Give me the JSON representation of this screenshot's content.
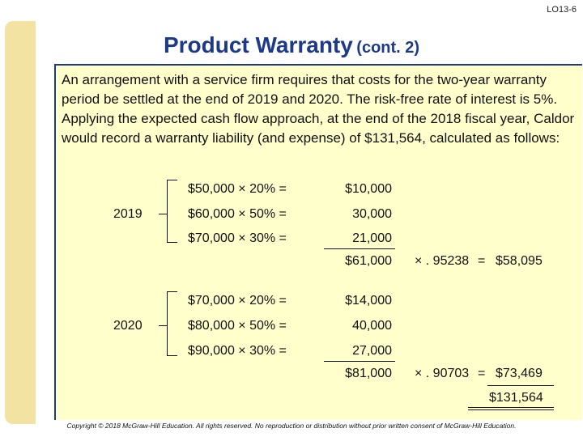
{
  "slide_id": "LO13-6",
  "title": {
    "main": "Product Warranty",
    "sub": "(cont. 2)"
  },
  "intro": "An arrangement with a service firm requires that costs for the two-year warranty period be settled at the end of 2019 and 2020. The risk-free rate of interest is 5%. Applying the expected cash flow approach, at the end of the 2018 fiscal year, Caldor would record a warranty liability (and expense) of $131,564, calculated as follows:",
  "years": [
    {
      "year": "2019",
      "rows": [
        {
          "calc": "$50,000 × 20% =",
          "amount": "$10,000"
        },
        {
          "calc": "$60,000 × 50% =",
          "amount": "30,000"
        },
        {
          "calc": "$70,000 × 30% =",
          "amount": "21,000"
        }
      ],
      "total": "$61,000",
      "factor": "× . 95238",
      "equals": "=",
      "pv": "$58,095"
    },
    {
      "year": "2020",
      "rows": [
        {
          "calc": "$70,000 × 20% =",
          "amount": "$14,000"
        },
        {
          "calc": "$80,000 × 50% =",
          "amount": "40,000"
        },
        {
          "calc": "$90,000 × 30% =",
          "amount": "27,000"
        }
      ],
      "total": "$81,000",
      "factor": "× . 90703",
      "equals": "=",
      "pv": "$73,469"
    }
  ],
  "grand_total": "$131,564",
  "footer": "Copyright © 2018 McGraw-Hill Education. All rights reserved. No reproduction or distribution without prior written consent of McGraw-Hill Education."
}
